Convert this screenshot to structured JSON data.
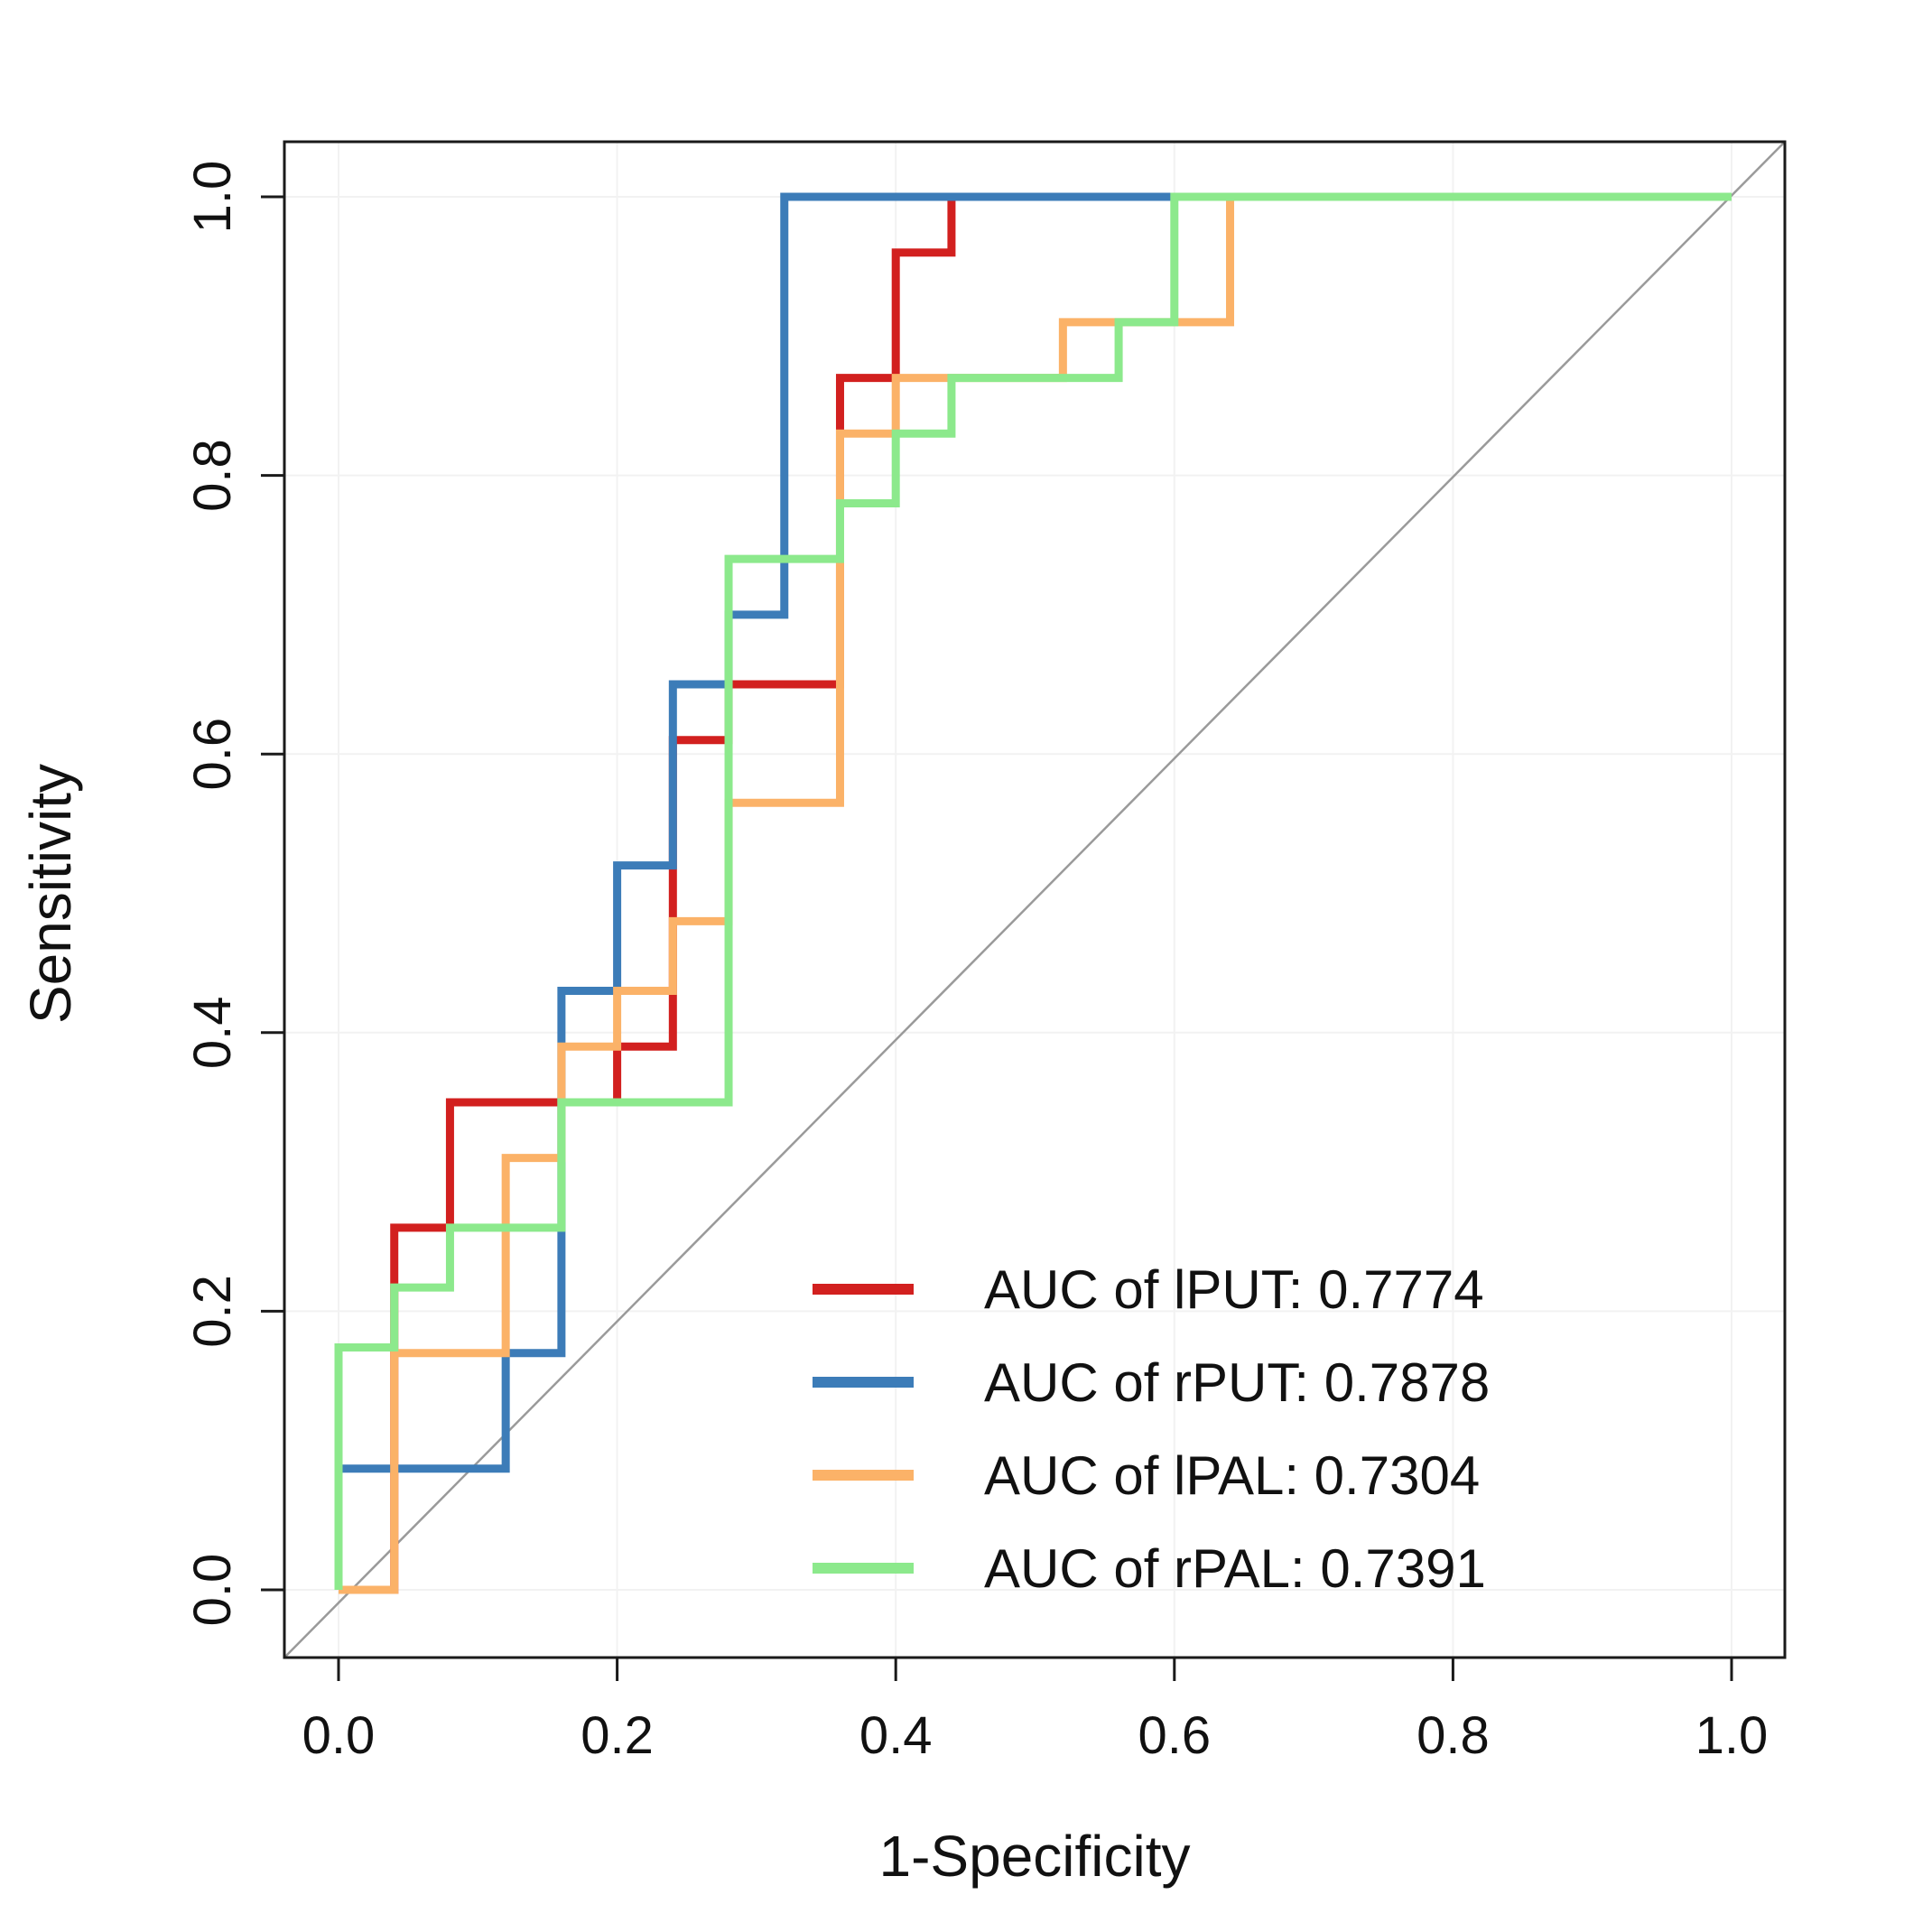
{
  "figure": {
    "background": "#ffffff",
    "frame_color": "#1a1a1a",
    "grid_color": "#f2f2f2",
    "diagonal_color": "#9a9a9a"
  },
  "chart_data": {
    "type": "line",
    "subtype": "roc-step-curves",
    "title": "",
    "xlabel": "1-Specificity",
    "ylabel": "Sensitivity",
    "xlim": [
      0,
      1
    ],
    "ylim": [
      0,
      1
    ],
    "grid": "faint",
    "diagonal_reference": true,
    "legend_position": "lower-right",
    "xticks": [
      0.0,
      0.2,
      0.4,
      0.6,
      0.8,
      1.0
    ],
    "xtick_labels": [
      "0.0",
      "0.2",
      "0.4",
      "0.6",
      "0.8",
      "1.0"
    ],
    "yticks": [
      0.0,
      0.2,
      0.4,
      0.6,
      0.8,
      1.0
    ],
    "ytick_labels": [
      "0.0",
      "0.2",
      "0.4",
      "0.6",
      "0.8",
      "1.0"
    ],
    "series": [
      {
        "key": "lPUT",
        "label": "AUC of lPUT: 0.7774",
        "auc": 0.7774,
        "color": "#d2201f",
        "points": [
          [
            0,
            0
          ],
          [
            0.04,
            0
          ],
          [
            0.04,
            0.26
          ],
          [
            0.08,
            0.26
          ],
          [
            0.08,
            0.35
          ],
          [
            0.2,
            0.35
          ],
          [
            0.2,
            0.39
          ],
          [
            0.24,
            0.39
          ],
          [
            0.24,
            0.61
          ],
          [
            0.28,
            0.61
          ],
          [
            0.28,
            0.65
          ],
          [
            0.36,
            0.65
          ],
          [
            0.36,
            0.87
          ],
          [
            0.4,
            0.87
          ],
          [
            0.4,
            0.96
          ],
          [
            0.44,
            0.96
          ],
          [
            0.44,
            1.0
          ],
          [
            1.0,
            1.0
          ]
        ]
      },
      {
        "key": "rPUT",
        "label": "AUC of rPUT: 0.7878",
        "auc": 0.7878,
        "color": "#3c7cb8",
        "points": [
          [
            0,
            0
          ],
          [
            0,
            0.087
          ],
          [
            0.12,
            0.087
          ],
          [
            0.12,
            0.17
          ],
          [
            0.16,
            0.17
          ],
          [
            0.16,
            0.43
          ],
          [
            0.2,
            0.43
          ],
          [
            0.2,
            0.52
          ],
          [
            0.24,
            0.52
          ],
          [
            0.24,
            0.65
          ],
          [
            0.28,
            0.65
          ],
          [
            0.28,
            0.7
          ],
          [
            0.32,
            0.7
          ],
          [
            0.32,
            1.0
          ],
          [
            0.6,
            1.0
          ],
          [
            1.0,
            1.0
          ]
        ]
      },
      {
        "key": "lPAL",
        "label": "AUC of lPAL: 0.7304",
        "auc": 0.7304,
        "color": "#fbb268",
        "points": [
          [
            0,
            0
          ],
          [
            0.04,
            0
          ],
          [
            0.04,
            0.17
          ],
          [
            0.12,
            0.17
          ],
          [
            0.12,
            0.31
          ],
          [
            0.16,
            0.31
          ],
          [
            0.16,
            0.39
          ],
          [
            0.2,
            0.39
          ],
          [
            0.2,
            0.43
          ],
          [
            0.24,
            0.43
          ],
          [
            0.24,
            0.48
          ],
          [
            0.28,
            0.48
          ],
          [
            0.28,
            0.565
          ],
          [
            0.36,
            0.565
          ],
          [
            0.36,
            0.83
          ],
          [
            0.4,
            0.83
          ],
          [
            0.4,
            0.87
          ],
          [
            0.52,
            0.87
          ],
          [
            0.52,
            0.91
          ],
          [
            0.64,
            0.91
          ],
          [
            0.64,
            1.0
          ],
          [
            1.0,
            1.0
          ]
        ]
      },
      {
        "key": "rPAL",
        "label": "AUC of rPAL: 0.7391",
        "auc": 0.7391,
        "color": "#8ce98c",
        "points": [
          [
            0,
            0
          ],
          [
            0,
            0.174
          ],
          [
            0.04,
            0.174
          ],
          [
            0.04,
            0.217
          ],
          [
            0.08,
            0.217
          ],
          [
            0.08,
            0.26
          ],
          [
            0.16,
            0.26
          ],
          [
            0.16,
            0.35
          ],
          [
            0.28,
            0.35
          ],
          [
            0.28,
            0.74
          ],
          [
            0.36,
            0.74
          ],
          [
            0.36,
            0.78
          ],
          [
            0.4,
            0.78
          ],
          [
            0.4,
            0.83
          ],
          [
            0.44,
            0.83
          ],
          [
            0.44,
            0.87
          ],
          [
            0.56,
            0.87
          ],
          [
            0.56,
            0.91
          ],
          [
            0.6,
            0.91
          ],
          [
            0.6,
            1.0
          ],
          [
            1.0,
            1.0
          ]
        ]
      }
    ],
    "legend": {
      "items": [
        {
          "label": "AUC of lPUT: 0.7774",
          "color": "#d2201f"
        },
        {
          "label": "AUC of rPUT: 0.7878",
          "color": "#3c7cb8"
        },
        {
          "label": "AUC of lPAL: 0.7304",
          "color": "#fbb268"
        },
        {
          "label": "AUC of rPAL: 0.7391",
          "color": "#8ce98c"
        }
      ]
    }
  }
}
